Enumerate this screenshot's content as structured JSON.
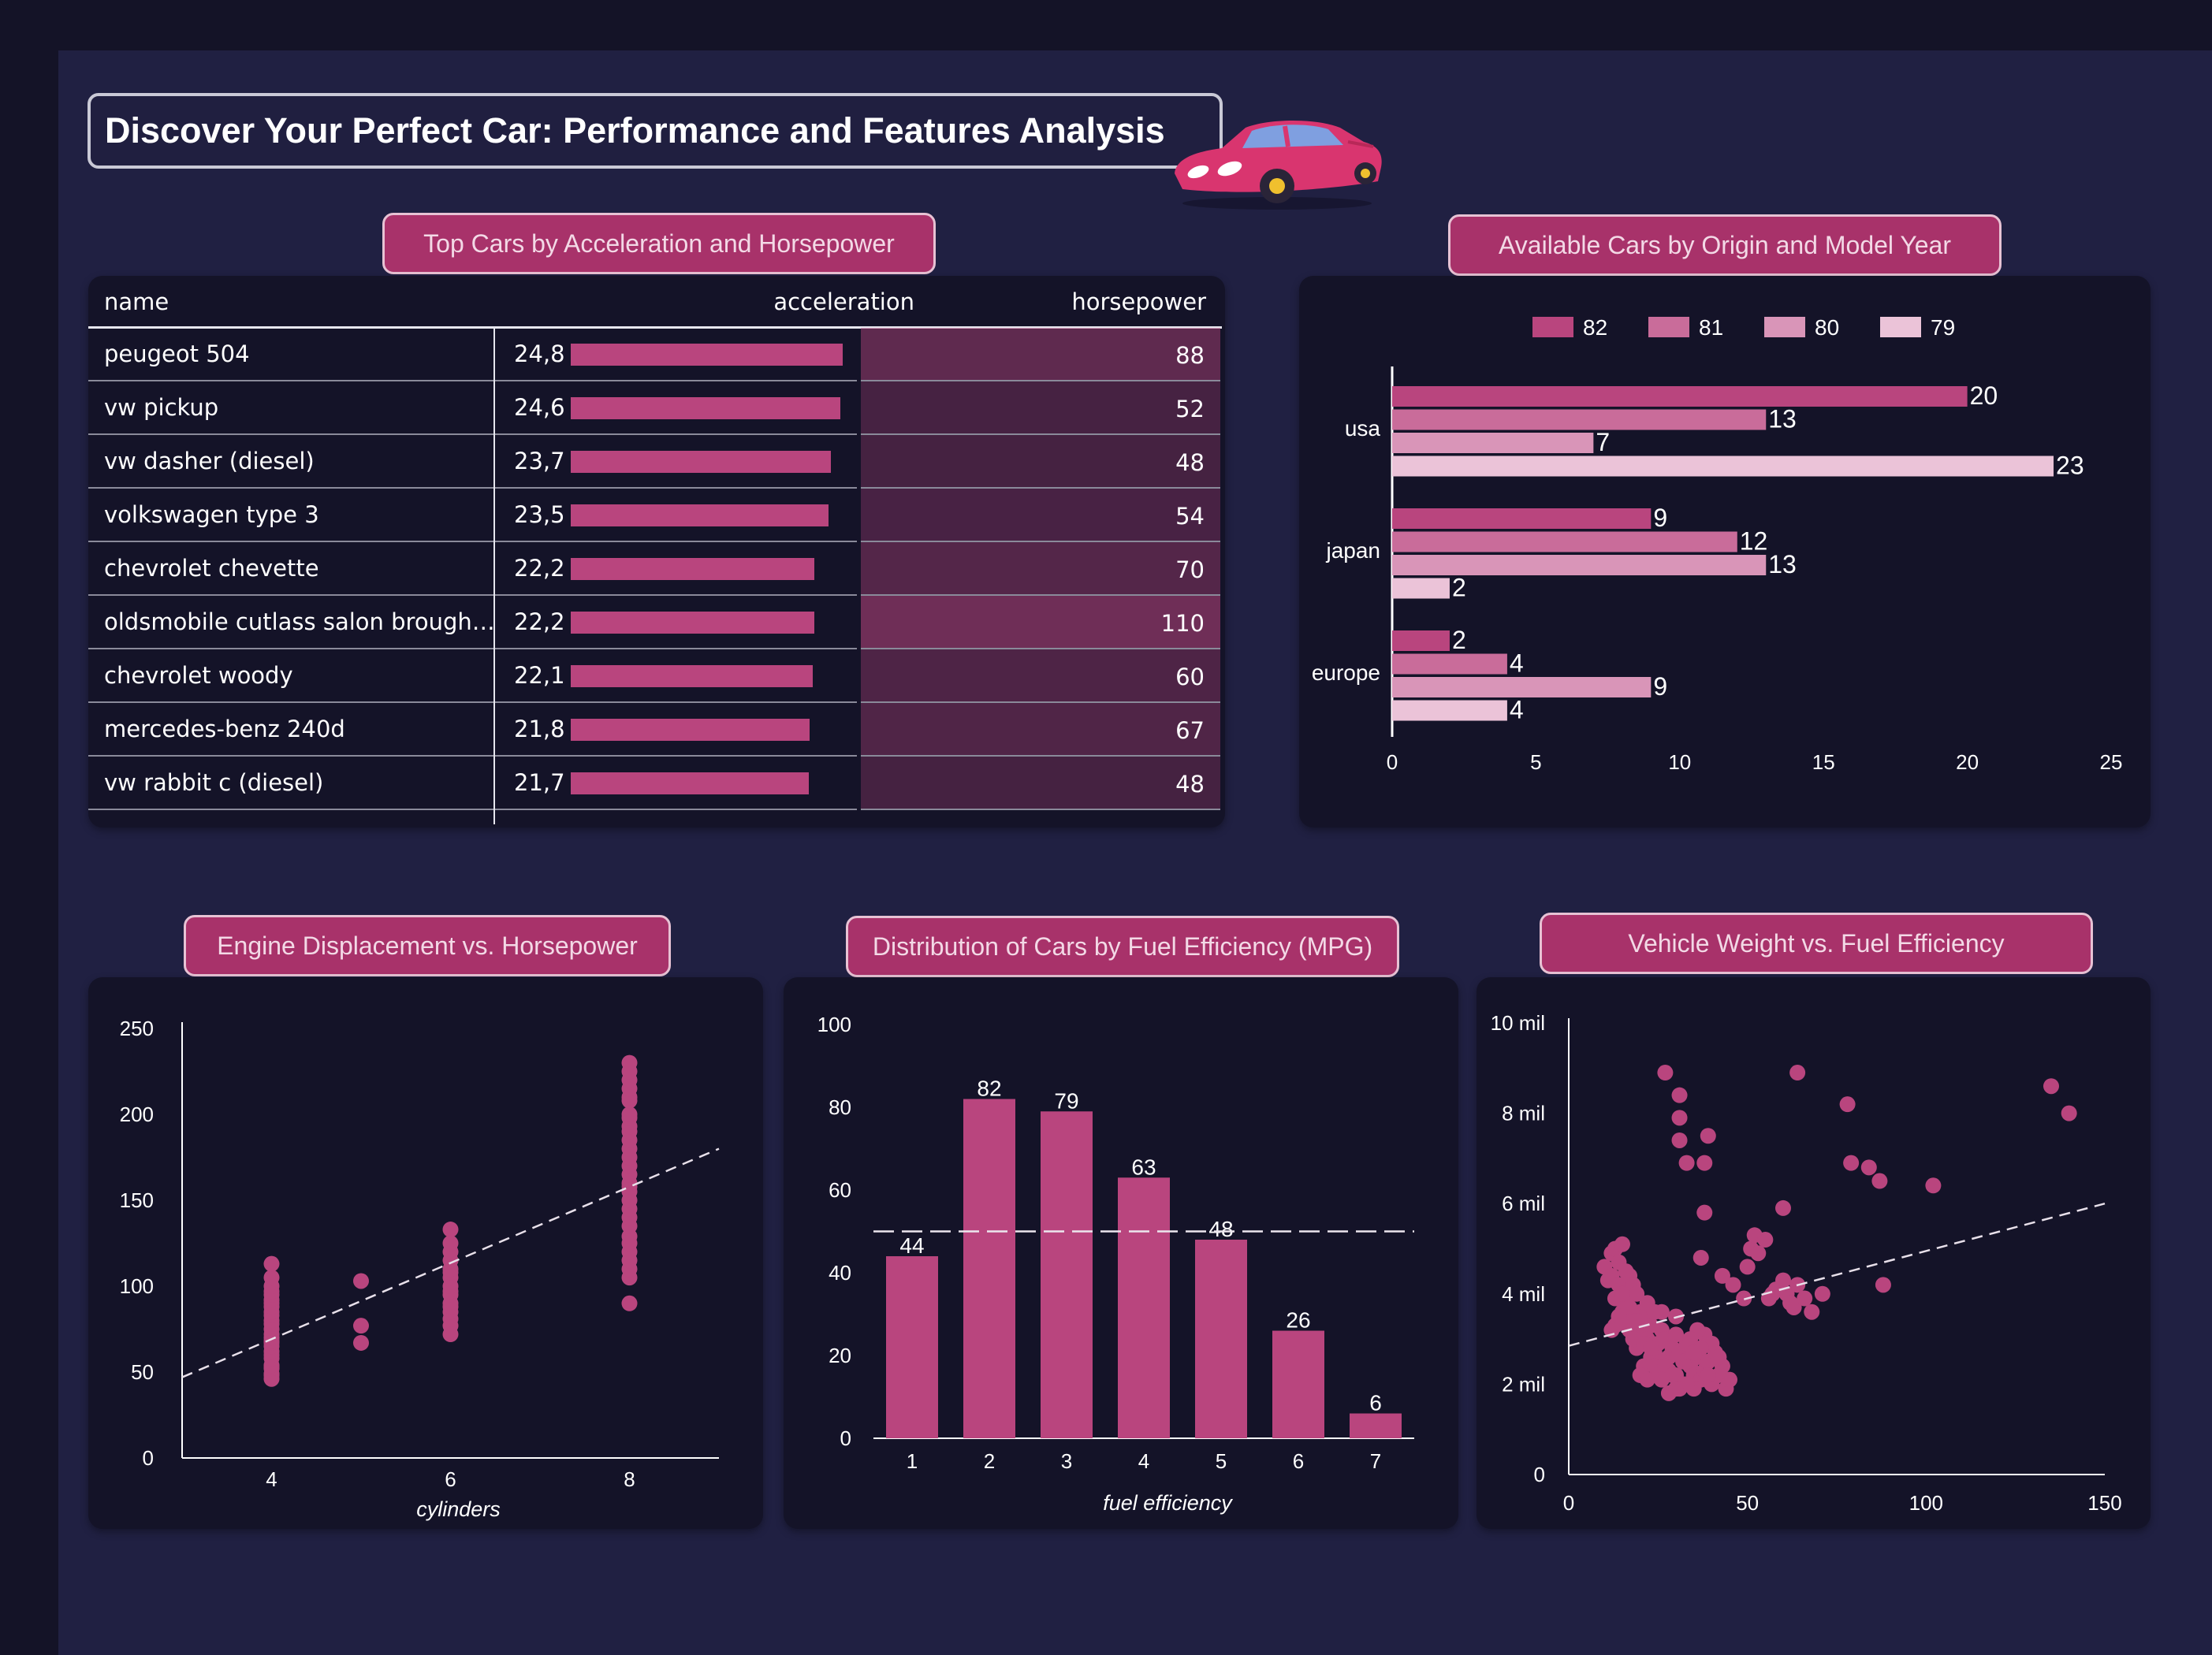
{
  "page": {
    "title": "Discover Your Perfect Car: Performance and Features Analysis",
    "accent_color": "#b9457e",
    "background_color": "#202042",
    "panel_color": "#141328"
  },
  "table_panel": {
    "title": "Top Cars by Acceleration and Horsepower",
    "columns": [
      "name",
      "acceleration",
      "horsepower"
    ],
    "rows": [
      {
        "name": "peugeot 504",
        "acceleration": "24,8",
        "accel_value": 24.8,
        "horsepower": "88",
        "hp_value": 88
      },
      {
        "name": "vw pickup",
        "acceleration": "24,6",
        "accel_value": 24.6,
        "horsepower": "52",
        "hp_value": 52
      },
      {
        "name": "vw dasher (diesel)",
        "acceleration": "23,7",
        "accel_value": 23.7,
        "horsepower": "48",
        "hp_value": 48
      },
      {
        "name": "volkswagen type 3",
        "acceleration": "23,5",
        "accel_value": 23.5,
        "horsepower": "54",
        "hp_value": 54
      },
      {
        "name": "chevrolet chevette",
        "acceleration": "22,2",
        "accel_value": 22.2,
        "horsepower": "70",
        "hp_value": 70
      },
      {
        "name": "oldsmobile cutlass salon brough…",
        "acceleration": "22,2",
        "accel_value": 22.2,
        "horsepower": "110",
        "hp_value": 110
      },
      {
        "name": "chevrolet woody",
        "acceleration": "22,1",
        "accel_value": 22.1,
        "horsepower": "60",
        "hp_value": 60
      },
      {
        "name": "mercedes-benz 240d",
        "acceleration": "21,8",
        "accel_value": 21.8,
        "horsepower": "67",
        "hp_value": 67
      },
      {
        "name": "vw rabbit c (diesel)",
        "acceleration": "21,7",
        "accel_value": 21.7,
        "horsepower": "48",
        "hp_value": 48
      }
    ]
  },
  "chart_data": [
    {
      "id": "origin_year",
      "type": "bar",
      "orientation": "horizontal",
      "title": "Available Cars by Origin and Model Year",
      "categories": [
        "usa",
        "japan",
        "europe"
      ],
      "series": [
        {
          "name": "82",
          "color": "#b9457e",
          "values": [
            20,
            9,
            2
          ]
        },
        {
          "name": "81",
          "color": "#c96c9a",
          "values": [
            13,
            12,
            4
          ]
        },
        {
          "name": "80",
          "color": "#d995b8",
          "values": [
            7,
            13,
            9
          ]
        },
        {
          "name": "79",
          "color": "#ebc3d8",
          "values": [
            23,
            2,
            4
          ]
        }
      ],
      "xlim": [
        0,
        25
      ],
      "xticks": [
        "0",
        "5",
        "10",
        "15",
        "20",
        "25"
      ],
      "legend": "top"
    },
    {
      "id": "displacement_hp",
      "type": "scatter",
      "title": "Engine Displacement vs. Horsepower",
      "xlabel": "cylinders",
      "xticks": [
        "4",
        "6",
        "8"
      ],
      "yticks": [
        "0",
        "50",
        "100",
        "150",
        "200",
        "250"
      ],
      "ylim": [
        0,
        250
      ],
      "xlim": [
        3,
        9
      ],
      "groups": [
        {
          "x": 4,
          "y": [
            46,
            48,
            49,
            52,
            53,
            54,
            58,
            60,
            62,
            65,
            67,
            68,
            70,
            72,
            75,
            78,
            80,
            83,
            85,
            88,
            90,
            92,
            95,
            97,
            100,
            105,
            113
          ]
        },
        {
          "x": 5,
          "y": [
            67,
            77,
            103
          ]
        },
        {
          "x": 6,
          "y": [
            72,
            77,
            81,
            85,
            88,
            90,
            95,
            97,
            100,
            105,
            108,
            110,
            115,
            120,
            125,
            133
          ]
        },
        {
          "x": 8,
          "y": [
            90,
            105,
            110,
            115,
            120,
            125,
            129,
            135,
            140,
            145,
            150,
            155,
            158,
            160,
            165,
            170,
            175,
            180,
            185,
            190,
            193,
            198,
            200,
            208,
            210,
            215,
            220,
            225,
            230
          ]
        }
      ],
      "trendline": {
        "x": [
          3,
          9
        ],
        "y": [
          47,
          180
        ]
      }
    },
    {
      "id": "mpg_distribution",
      "type": "bar",
      "title": "Distribution of Cars by Fuel Efficiency (MPG)",
      "xlabel": "fuel efficiency",
      "categories": [
        "1",
        "2",
        "3",
        "4",
        "5",
        "6",
        "7"
      ],
      "values": [
        44,
        82,
        79,
        63,
        48,
        26,
        6
      ],
      "ylim": [
        0,
        100
      ],
      "yticks": [
        "0",
        "20",
        "40",
        "60",
        "80",
        "100"
      ],
      "reference_line": 50
    },
    {
      "id": "weight_efficiency",
      "type": "scatter",
      "title": "Vehicle Weight vs. Fuel Efficiency",
      "xlim": [
        0,
        150
      ],
      "ylim": [
        0,
        10
      ],
      "xticks": [
        "0",
        "50",
        "100",
        "150"
      ],
      "yticks": [
        "0",
        "2 mil",
        "4 mil",
        "6 mil",
        "8 mil",
        "10 mil"
      ],
      "points": [
        [
          10,
          4.6
        ],
        [
          11,
          4.3
        ],
        [
          12,
          4.9
        ],
        [
          13,
          5.0
        ],
        [
          14,
          4.7
        ],
        [
          15,
          5.1
        ],
        [
          12,
          4.4
        ],
        [
          16,
          4.5
        ],
        [
          14,
          4.2
        ],
        [
          13,
          3.9
        ],
        [
          15,
          3.6
        ],
        [
          17,
          4.4
        ],
        [
          18,
          4.2
        ],
        [
          16,
          3.8
        ],
        [
          19,
          4.0
        ],
        [
          20,
          3.6
        ],
        [
          18,
          3.4
        ],
        [
          17,
          3.2
        ],
        [
          21,
          3.5
        ],
        [
          22,
          3.8
        ],
        [
          20,
          3.1
        ],
        [
          23,
          3.3
        ],
        [
          24,
          3.6
        ],
        [
          22,
          3.0
        ],
        [
          25,
          2.9
        ],
        [
          26,
          3.2
        ],
        [
          24,
          2.7
        ],
        [
          27,
          3.0
        ],
        [
          28,
          2.6
        ],
        [
          26,
          2.5
        ],
        [
          29,
          2.8
        ],
        [
          30,
          3.1
        ],
        [
          31,
          2.7
        ],
        [
          28,
          2.3
        ],
        [
          32,
          2.5
        ],
        [
          30,
          2.2
        ],
        [
          33,
          2.9
        ],
        [
          34,
          2.4
        ],
        [
          35,
          2.2
        ],
        [
          32,
          2.0
        ],
        [
          36,
          2.6
        ],
        [
          37,
          2.1
        ],
        [
          38,
          2.3
        ],
        [
          35,
          1.9
        ],
        [
          39,
          2.5
        ],
        [
          40,
          2.0
        ],
        [
          42,
          2.2
        ],
        [
          44,
          1.9
        ],
        [
          43,
          2.4
        ],
        [
          41,
          2.7
        ],
        [
          45,
          2.1
        ],
        [
          38,
          3.1
        ],
        [
          40,
          2.9
        ],
        [
          36,
          3.2
        ],
        [
          25,
          2.3
        ],
        [
          23,
          2.6
        ],
        [
          21,
          2.4
        ],
        [
          19,
          2.8
        ],
        [
          20,
          2.2
        ],
        [
          18,
          3.0
        ],
        [
          24,
          2.4
        ],
        [
          22,
          2.1
        ],
        [
          27,
          2.4
        ],
        [
          29,
          2.2
        ],
        [
          31,
          1.9
        ],
        [
          33,
          2.0
        ],
        [
          34,
          3.0
        ],
        [
          37,
          2.8
        ],
        [
          16,
          3.4
        ],
        [
          14,
          3.5
        ],
        [
          13,
          3.3
        ],
        [
          15,
          4.0
        ],
        [
          17,
          3.7
        ],
        [
          19,
          3.4
        ],
        [
          21,
          2.9
        ],
        [
          23,
          2.8
        ],
        [
          26,
          2.1
        ],
        [
          28,
          1.8
        ],
        [
          30,
          1.9
        ],
        [
          35,
          2.7
        ],
        [
          39,
          2.2
        ],
        [
          42,
          2.6
        ],
        [
          12,
          3.2
        ],
        [
          26,
          3.6
        ],
        [
          30,
          3.5
        ],
        [
          27,
          8.9
        ],
        [
          31,
          8.4
        ],
        [
          31,
          7.9
        ],
        [
          31,
          7.4
        ],
        [
          33,
          6.9
        ],
        [
          38,
          6.9
        ],
        [
          39,
          7.5
        ],
        [
          38,
          5.8
        ],
        [
          37,
          4.8
        ],
        [
          43,
          4.4
        ],
        [
          46,
          4.2
        ],
        [
          49,
          3.9
        ],
        [
          50,
          4.6
        ],
        [
          51,
          5.0
        ],
        [
          52,
          5.3
        ],
        [
          53,
          4.9
        ],
        [
          55,
          5.2
        ],
        [
          56,
          3.9
        ],
        [
          58,
          4.1
        ],
        [
          60,
          4.3
        ],
        [
          61,
          4.0
        ],
        [
          62,
          3.8
        ],
        [
          63,
          3.7
        ],
        [
          64,
          4.2
        ],
        [
          66,
          3.9
        ],
        [
          68,
          3.6
        ],
        [
          60,
          5.9
        ],
        [
          64,
          8.9
        ],
        [
          78,
          8.2
        ],
        [
          79,
          6.9
        ],
        [
          84,
          6.8
        ],
        [
          87,
          6.5
        ],
        [
          88,
          4.2
        ],
        [
          102,
          6.4
        ],
        [
          135,
          8.6
        ],
        [
          140,
          8.0
        ],
        [
          71,
          4.0
        ],
        [
          57,
          4.0
        ]
      ],
      "trendline": {
        "x": [
          0,
          150
        ],
        "y": [
          2.85,
          6.0
        ]
      }
    }
  ]
}
